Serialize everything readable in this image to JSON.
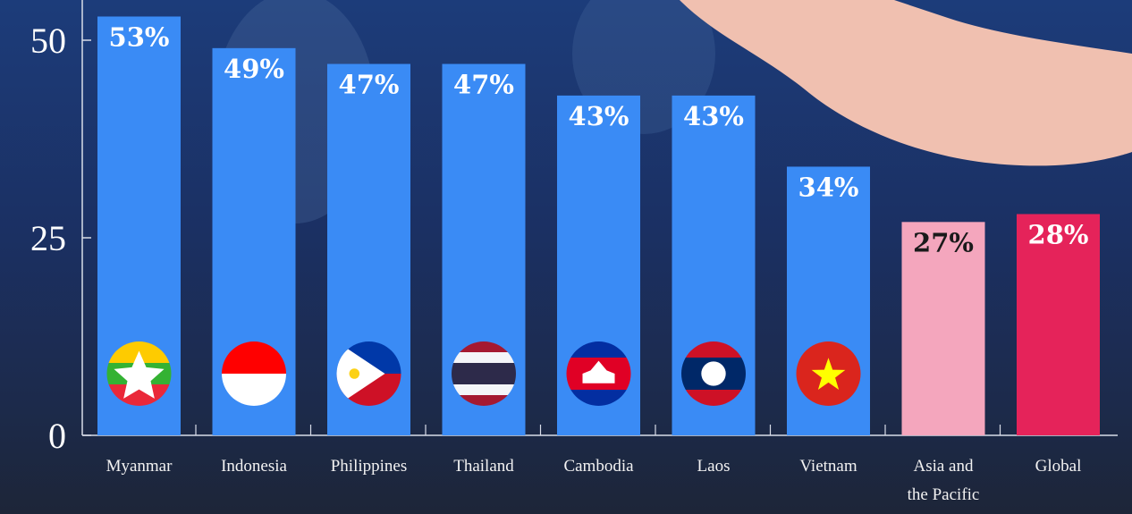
{
  "chart_data": {
    "type": "bar",
    "categories": [
      "Myanmar",
      "Indonesia",
      "Philippines",
      "Thailand",
      "Cambodia",
      "Laos",
      "Vietnam",
      "Asia and the Pacific",
      "Global"
    ],
    "category_lines": [
      [
        "Myanmar"
      ],
      [
        "Indonesia"
      ],
      [
        "Philippines"
      ],
      [
        "Thailand"
      ],
      [
        "Cambodia"
      ],
      [
        "Laos"
      ],
      [
        "Vietnam"
      ],
      [
        "Asia and",
        "the Pacific"
      ],
      [
        "Global"
      ]
    ],
    "values": [
      53,
      49,
      47,
      47,
      43,
      43,
      34,
      27,
      28
    ],
    "data_labels": [
      "53%",
      "49%",
      "47%",
      "47%",
      "43%",
      "43%",
      "34%",
      "27%",
      "28%"
    ],
    "bar_colors": [
      "#3a8bf5",
      "#3a8bf5",
      "#3a8bf5",
      "#3a8bf5",
      "#3a8bf5",
      "#3a8bf5",
      "#3a8bf5",
      "#f4a6bd",
      "#e5235a"
    ],
    "label_colors": [
      "#ffffff",
      "#ffffff",
      "#ffffff",
      "#ffffff",
      "#ffffff",
      "#ffffff",
      "#ffffff",
      "#1a1a1a",
      "#ffffff"
    ],
    "flags": [
      "myanmar-flag",
      "indonesia-flag",
      "philippines-flag",
      "thailand-flag",
      "cambodia-flag",
      "laos-flag",
      "vietnam-flag",
      null,
      null
    ],
    "yticks": [
      0,
      25,
      50
    ],
    "ylim": [
      0,
      55
    ],
    "grid": false,
    "title": "",
    "xlabel": "",
    "ylabel": ""
  }
}
